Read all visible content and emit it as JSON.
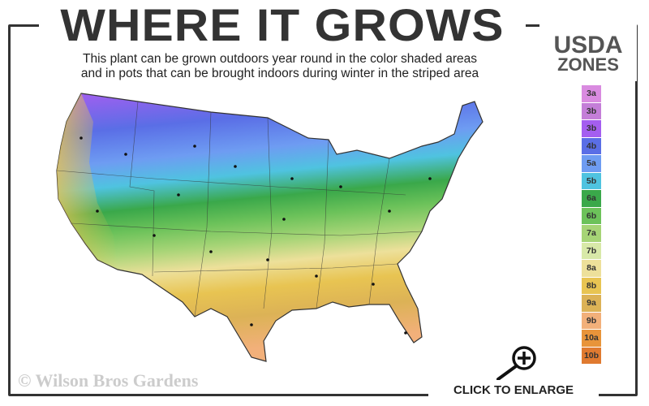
{
  "title": "WHERE IT GROWS",
  "subtitle_line1": "This plant can be grown outdoors year round in the color shaded areas",
  "subtitle_line2": "and in pots that can be brought indoors during winter in the striped area",
  "legend": {
    "title_line1": "USDA",
    "title_line2": "ZONES",
    "zones": [
      {
        "label": "3a",
        "color": "#d98be0"
      },
      {
        "label": "3b",
        "color": "#c47ed8"
      },
      {
        "label": "3b",
        "color": "#a45ef0"
      },
      {
        "label": "4b",
        "color": "#5a6ee6"
      },
      {
        "label": "5a",
        "color": "#6e9cf2"
      },
      {
        "label": "5b",
        "color": "#4fc3e0"
      },
      {
        "label": "6a",
        "color": "#3aa84a"
      },
      {
        "label": "6b",
        "color": "#6cc25a"
      },
      {
        "label": "7a",
        "color": "#a6d476"
      },
      {
        "label": "7b",
        "color": "#d8e9a8"
      },
      {
        "label": "8a",
        "color": "#ede09a"
      },
      {
        "label": "8b",
        "color": "#e8c452"
      },
      {
        "label": "9a",
        "color": "#dcb256"
      },
      {
        "label": "9b",
        "color": "#f2b07a"
      },
      {
        "label": "10a",
        "color": "#e8943a"
      },
      {
        "label": "10b",
        "color": "#e07a30"
      }
    ]
  },
  "copyright": "© Wilson Bros Gardens",
  "enlarge_label": "CLICK TO ENLARGE",
  "enlarge_icon": "magnifier-plus-icon"
}
